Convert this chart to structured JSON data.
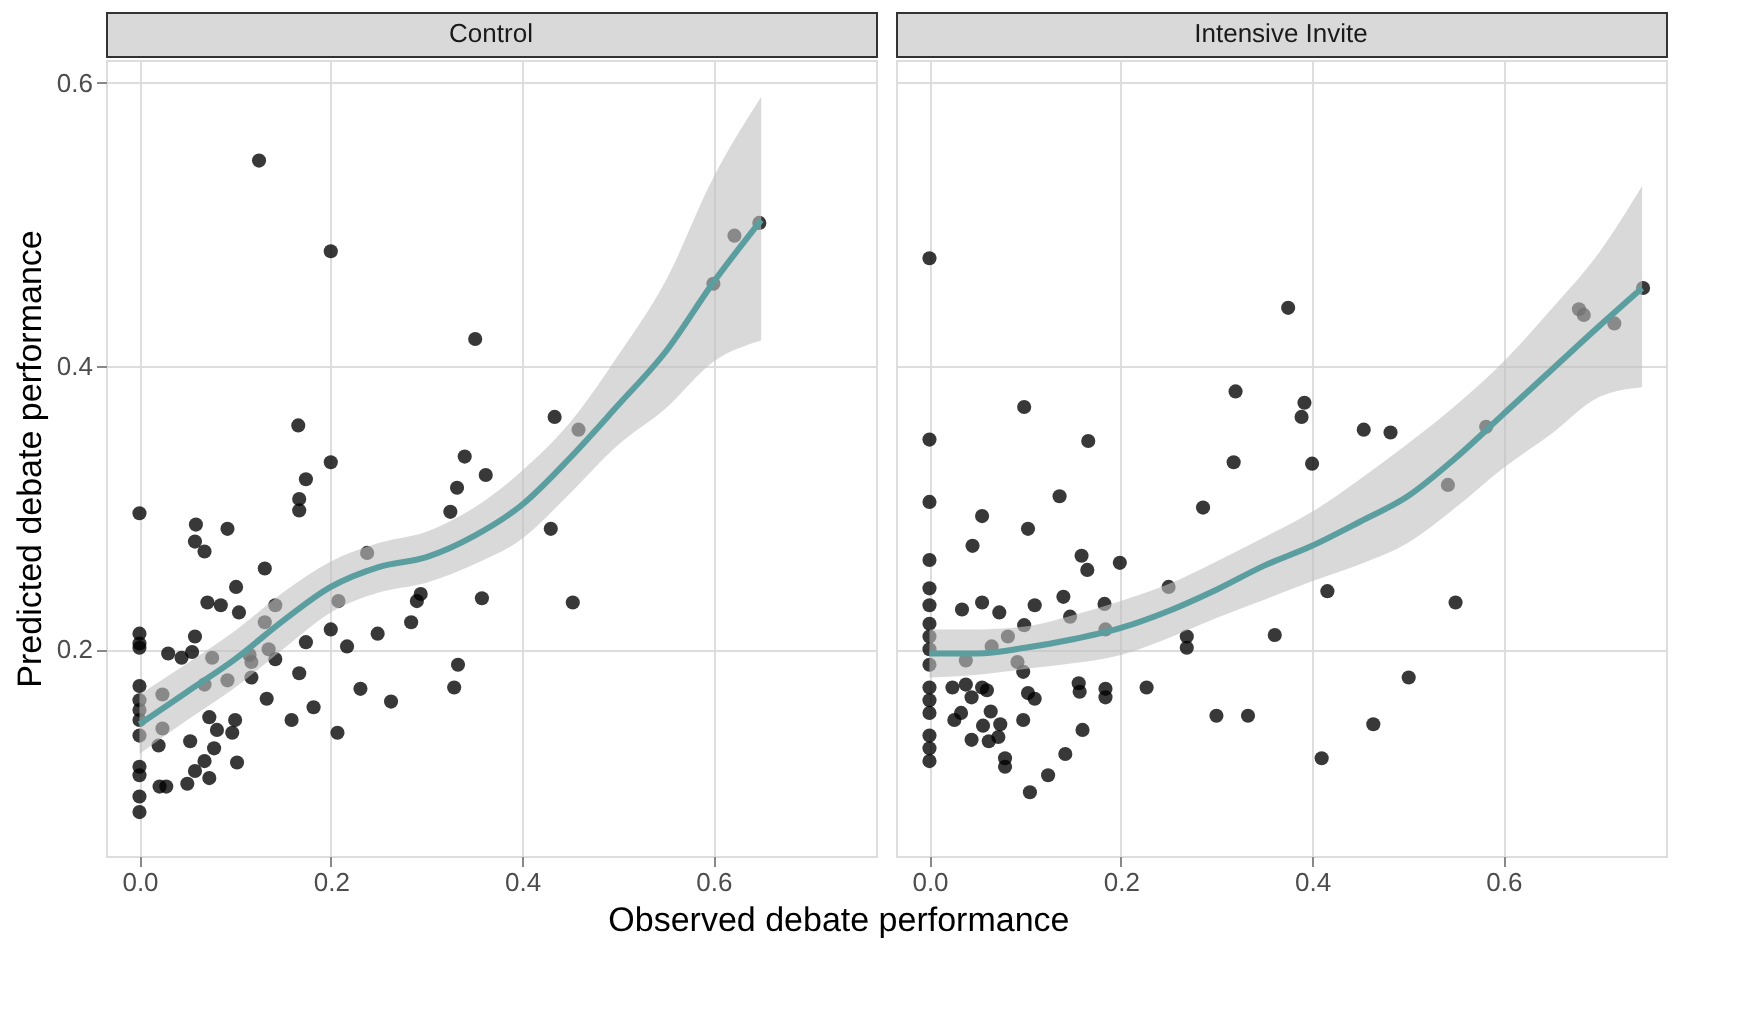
{
  "chart_data": [
    {
      "type": "scatter",
      "title": "Control",
      "xlabel": "Observed debate performance",
      "ylabel": "Predicted debate performance",
      "grid": true,
      "xlim": [
        -0.035,
        0.77
      ],
      "ylim": [
        0.054,
        0.616
      ],
      "xticks": [
        {
          "value": 0,
          "label": "0.0"
        },
        0.2,
        0.4,
        0.6
      ],
      "yticks": [
        0.2,
        0.4,
        0.6
      ],
      "series": [
        {
          "color": "#000000",
          "x": [
            0.125,
            0.2,
            0.351,
            0.166,
            0.2,
            0.174,
            0.167,
            0.167,
            0,
            0.059,
            0.092,
            0.058,
            0.068,
            0.34,
            0.332,
            0.325,
            0.238,
            0.131,
            0.101,
            0.071,
            0.085,
            0.104,
            0.142,
            0.208,
            0.294,
            0.29,
            0.131,
            0,
            0,
            0,
            0.058,
            0.03,
            0.044,
            0.055,
            0.076,
            0.115,
            0.117,
            0.135,
            0.142,
            0.174,
            0.2,
            0.217,
            0.249,
            0.284,
            0.333,
            0.329,
            0,
            0,
            0,
            0,
            0,
            0.024,
            0.068,
            0.092,
            0.117,
            0.167,
            0.231,
            0.263,
            0.133,
            0.159,
            0.182,
            0.207,
            0.024,
            0.02,
            0.053,
            0.073,
            0.081,
            0.097,
            0.1,
            0.078,
            0.068,
            0.102,
            0.058,
            0.05,
            0.073,
            0,
            0,
            0,
            0,
            0.021,
            0.028,
            0.648,
            0.622,
            0.6,
            0.434,
            0.459,
            0.362,
            0.43,
            0.358,
            0.453
          ],
          "values": [
            0.545,
            0.481,
            0.419,
            0.358,
            0.332,
            0.32,
            0.306,
            0.298,
            0.296,
            0.288,
            0.285,
            0.276,
            0.269,
            0.336,
            0.314,
            0.297,
            0.268,
            0.257,
            0.244,
            0.233,
            0.231,
            0.226,
            0.231,
            0.234,
            0.239,
            0.234,
            0.219,
            0.211,
            0.204,
            0.201,
            0.209,
            0.197,
            0.194,
            0.198,
            0.194,
            0.196,
            0.191,
            0.2,
            0.193,
            0.205,
            0.214,
            0.202,
            0.211,
            0.219,
            0.189,
            0.173,
            0.174,
            0.164,
            0.157,
            0.15,
            0.139,
            0.168,
            0.175,
            0.178,
            0.18,
            0.183,
            0.172,
            0.163,
            0.165,
            0.15,
            0.159,
            0.141,
            0.144,
            0.132,
            0.135,
            0.152,
            0.143,
            0.141,
            0.15,
            0.13,
            0.121,
            0.12,
            0.114,
            0.105,
            0.109,
            0.117,
            0.111,
            0.096,
            0.085,
            0.103,
            0.103,
            0.501,
            0.492,
            0.458,
            0.364,
            0.355,
            0.323,
            0.285,
            0.236,
            0.233
          ]
        },
        {
          "type": "line",
          "color": "#5b9ea0",
          "x": [
            0,
            0.05,
            0.1,
            0.15,
            0.2,
            0.25,
            0.3,
            0.35,
            0.4,
            0.45,
            0.5,
            0.55,
            0.6,
            0.65
          ],
          "values": [
            0.147,
            0.17,
            0.193,
            0.22,
            0.244,
            0.258,
            0.265,
            0.28,
            0.302,
            0.335,
            0.372,
            0.41,
            0.459,
            0.503
          ],
          "upper": [
            0.168,
            0.19,
            0.213,
            0.24,
            0.262,
            0.275,
            0.283,
            0.3,
            0.326,
            0.36,
            0.407,
            0.46,
            0.533,
            0.59
          ],
          "lower": [
            0.126,
            0.15,
            0.173,
            0.2,
            0.226,
            0.24,
            0.247,
            0.26,
            0.278,
            0.31,
            0.344,
            0.37,
            0.403,
            0.418
          ]
        }
      ]
    },
    {
      "type": "scatter",
      "title": "Intensive Invite",
      "grid": true,
      "tick_labels": "x",
      "xlim": [
        -0.035,
        0.77
      ],
      "ylim": [
        0.054,
        0.616
      ],
      "xticks": [
        {
          "value": 0,
          "label": "0.0"
        },
        0.2,
        0.4,
        0.6
      ],
      "yticks": [
        0.2,
        0.4,
        0.6
      ],
      "series": [
        {
          "color": "#000000",
          "x": [
            0,
            0,
            0,
            0,
            0,
            0,
            0,
            0,
            0,
            0,
            0,
            0,
            0,
            0,
            0,
            0,
            0.099,
            0.166,
            0.136,
            0.055,
            0.103,
            0.045,
            0.159,
            0.165,
            0.199,
            0.286,
            0.32,
            0.318,
            0.25,
            0.034,
            0.055,
            0.073,
            0.11,
            0.14,
            0.147,
            0.183,
            0.184,
            0.099,
            0.082,
            0.065,
            0.038,
            0.092,
            0.098,
            0.269,
            0.269,
            0.024,
            0.038,
            0.06,
            0.055,
            0.103,
            0.11,
            0.156,
            0.157,
            0.184,
            0.184,
            0.227,
            0.044,
            0.033,
            0.026,
            0.064,
            0.098,
            0.056,
            0.074,
            0.072,
            0.044,
            0.062,
            0.16,
            0.079,
            0.079,
            0.142,
            0.124,
            0.105,
            0.3,
            0.333,
            0.375,
            0.392,
            0.389,
            0.4,
            0.454,
            0.482,
            0.582,
            0.542,
            0.416,
            0.55,
            0.361,
            0.501,
            0.464,
            0.41,
            0.679,
            0.684,
            0.716,
            0.746
          ],
          "values": [
            0.476,
            0.348,
            0.304,
            0.263,
            0.243,
            0.231,
            0.218,
            0.209,
            0.2,
            0.189,
            0.173,
            0.164,
            0.155,
            0.139,
            0.13,
            0.121,
            0.371,
            0.347,
            0.308,
            0.294,
            0.285,
            0.273,
            0.266,
            0.256,
            0.261,
            0.3,
            0.382,
            0.332,
            0.244,
            0.228,
            0.233,
            0.226,
            0.231,
            0.237,
            0.223,
            0.232,
            0.214,
            0.217,
            0.209,
            0.202,
            0.192,
            0.191,
            0.184,
            0.201,
            0.209,
            0.173,
            0.175,
            0.171,
            0.173,
            0.169,
            0.165,
            0.176,
            0.17,
            0.172,
            0.166,
            0.173,
            0.166,
            0.155,
            0.15,
            0.156,
            0.15,
            0.146,
            0.147,
            0.138,
            0.136,
            0.135,
            0.143,
            0.123,
            0.117,
            0.126,
            0.111,
            0.099,
            0.153,
            0.153,
            0.441,
            0.374,
            0.364,
            0.331,
            0.355,
            0.353,
            0.357,
            0.316,
            0.241,
            0.233,
            0.21,
            0.18,
            0.147,
            0.123,
            0.44,
            0.436,
            0.43,
            0.455
          ]
        },
        {
          "type": "line",
          "color": "#5b9ea0",
          "x": [
            0,
            0.05,
            0.1,
            0.15,
            0.2,
            0.25,
            0.3,
            0.35,
            0.4,
            0.45,
            0.5,
            0.55,
            0.6,
            0.65,
            0.7,
            0.745
          ],
          "values": [
            0.197,
            0.197,
            0.201,
            0.207,
            0.215,
            0.227,
            0.242,
            0.259,
            0.273,
            0.29,
            0.308,
            0.335,
            0.366,
            0.397,
            0.428,
            0.455
          ],
          "upper": [
            0.214,
            0.214,
            0.216,
            0.224,
            0.234,
            0.246,
            0.262,
            0.279,
            0.297,
            0.32,
            0.345,
            0.372,
            0.403,
            0.44,
            0.48,
            0.527
          ],
          "lower": [
            0.18,
            0.182,
            0.186,
            0.19,
            0.196,
            0.208,
            0.222,
            0.235,
            0.248,
            0.26,
            0.275,
            0.3,
            0.328,
            0.352,
            0.378,
            0.385
          ]
        }
      ]
    }
  ]
}
